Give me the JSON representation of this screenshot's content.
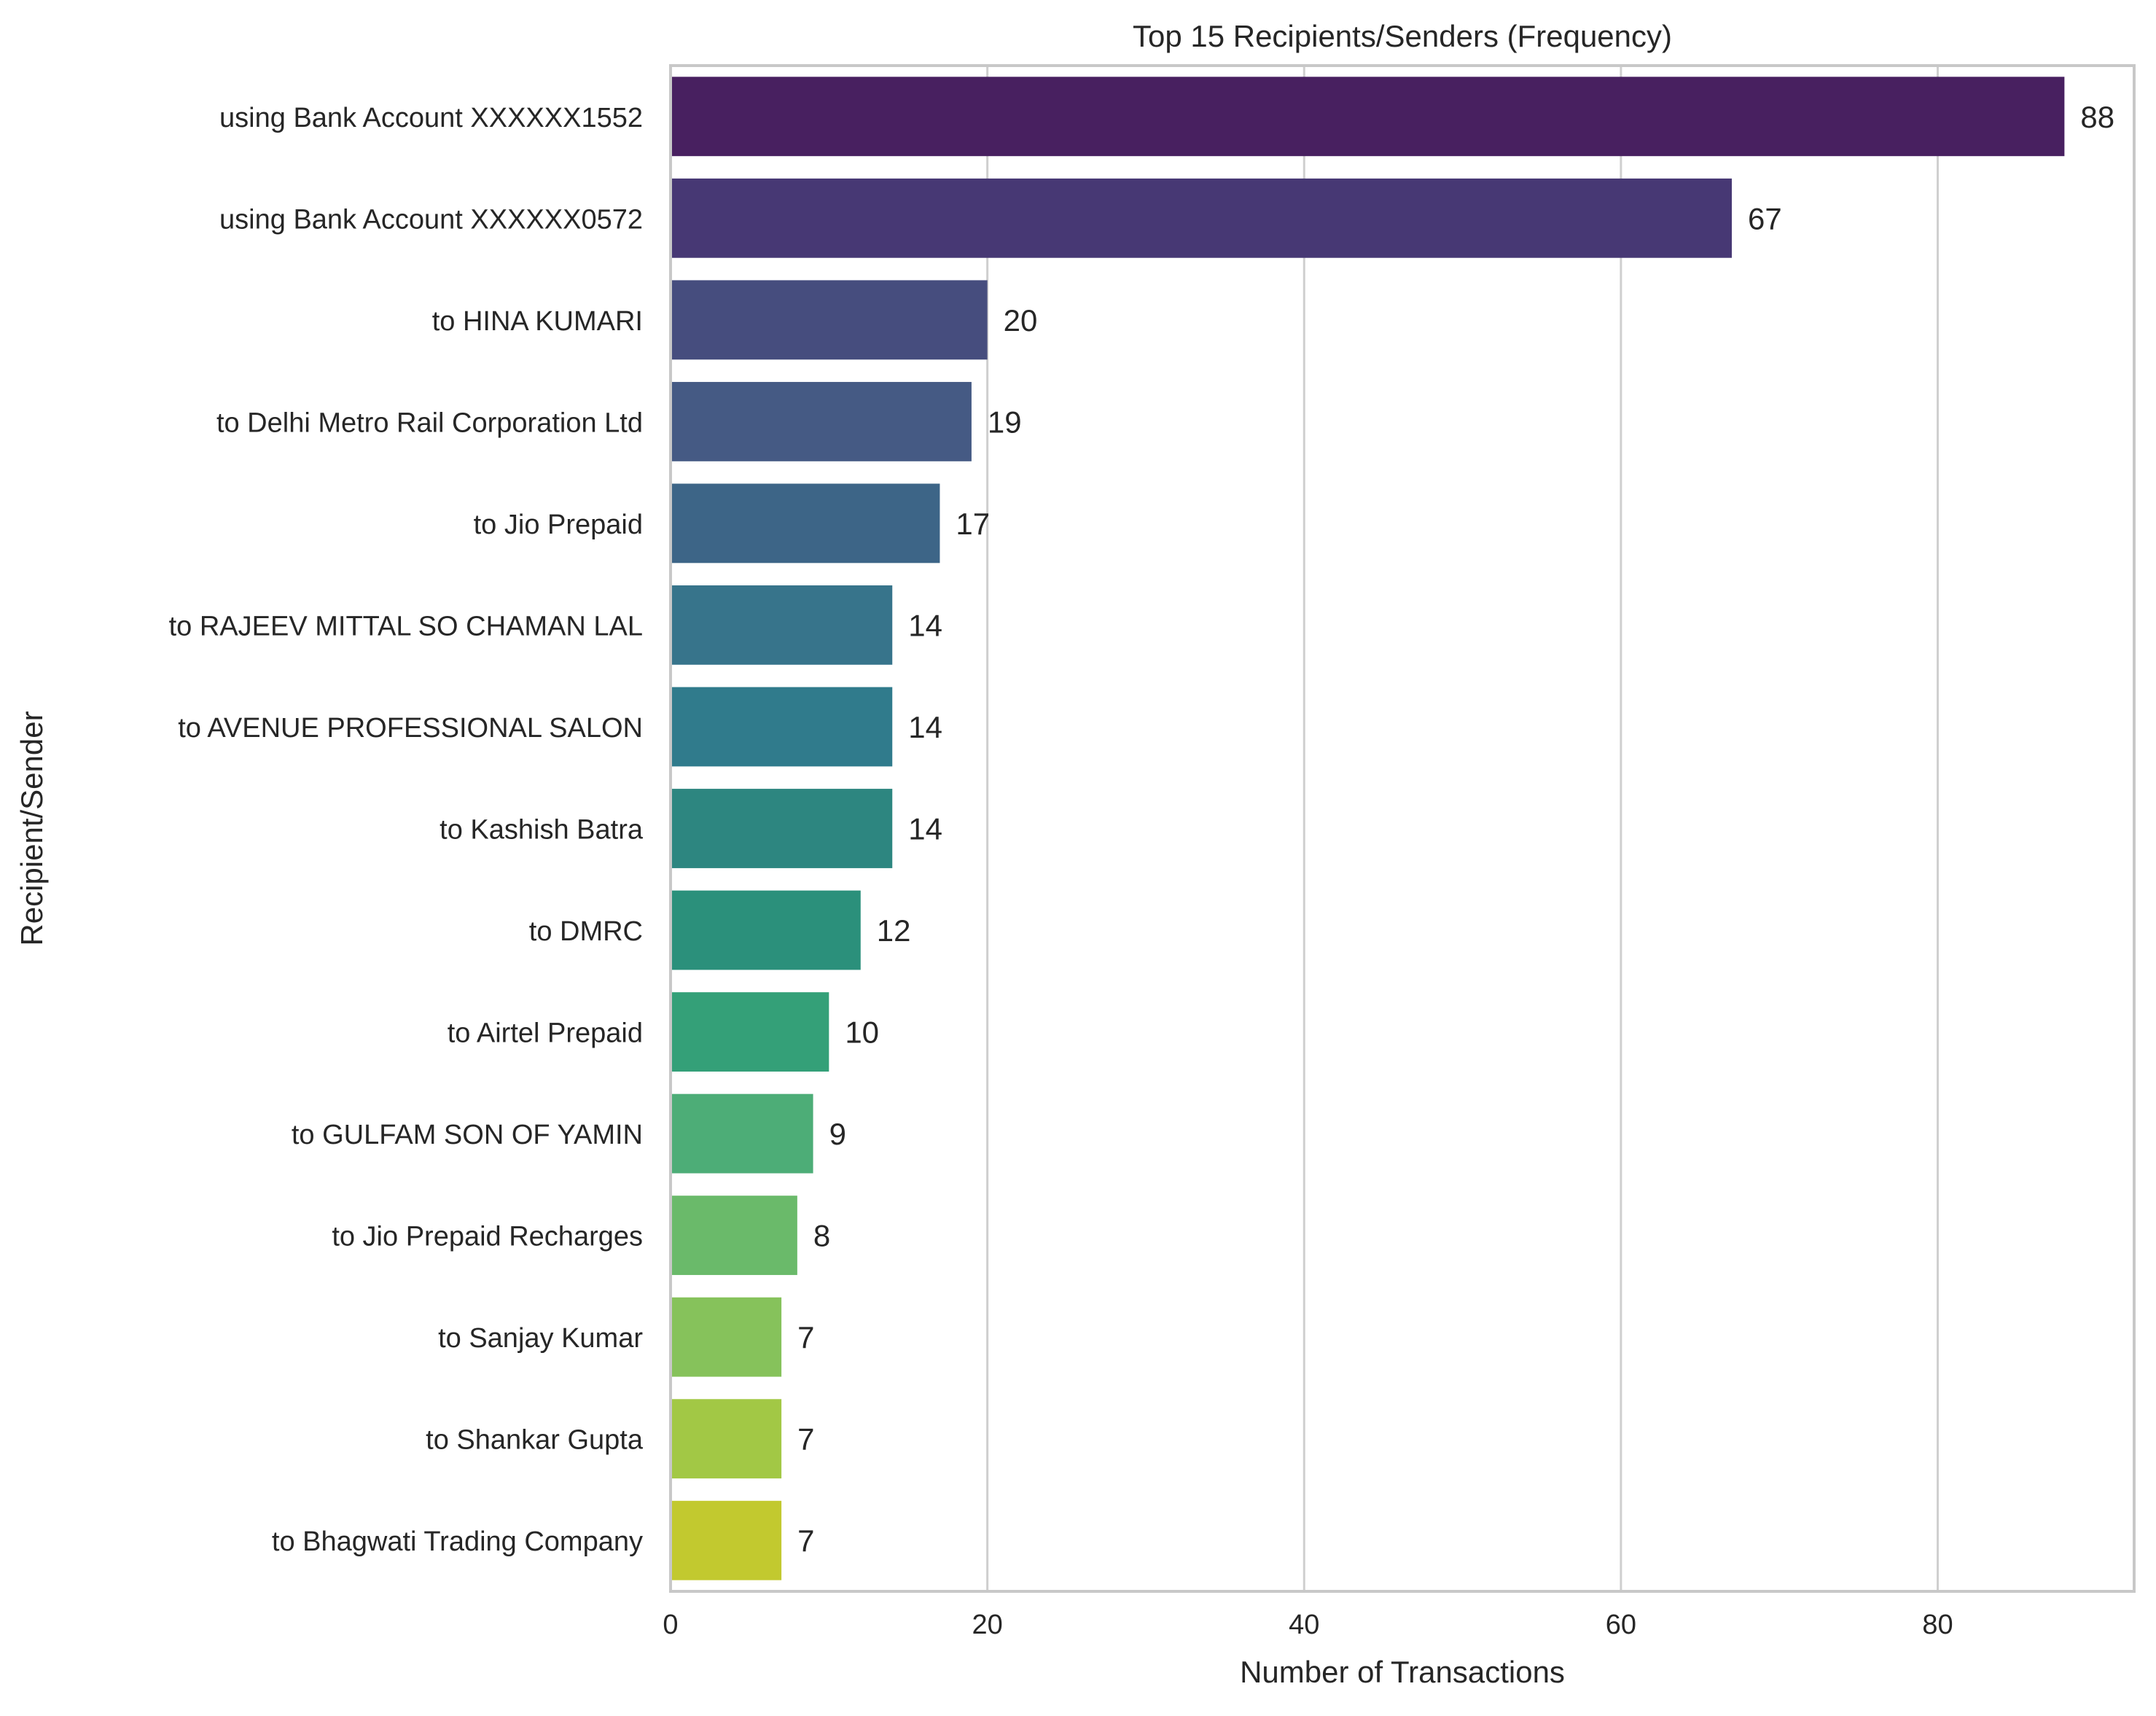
{
  "chart_data": {
    "type": "bar",
    "orientation": "horizontal",
    "title": "Top 15 Recipients/Senders (Frequency)",
    "xlabel": "Number of Transactions",
    "ylabel": "Recipient/Sender",
    "xlim": [
      0,
      92.4
    ],
    "xticks": [
      0,
      20,
      40,
      60,
      80
    ],
    "grid": "vertical",
    "categories": [
      "using Bank Account XXXXXX1552",
      "using Bank Account XXXXXX0572",
      "to HINA KUMARI",
      "to Delhi Metro Rail Corporation Ltd",
      "to Jio Prepaid",
      "to RAJEEV MITTAL SO CHAMAN LAL",
      "to AVENUE PROFESSIONAL SALON",
      "to Kashish Batra",
      "to DMRC",
      "to Airtel Prepaid",
      "to GULFAM SON OF YAMIN",
      "to Jio Prepaid Recharges",
      "to Sanjay Kumar",
      "to Shankar Gupta",
      "to Bhagwati Trading Company"
    ],
    "values": [
      88,
      67,
      20,
      19,
      17,
      14,
      14,
      14,
      12,
      10,
      9,
      8,
      7,
      7,
      7
    ],
    "colors": [
      "#482060",
      "#473874",
      "#464d7e",
      "#455a84",
      "#3d6587",
      "#37748b",
      "#307b8c",
      "#2d8680",
      "#2b907b",
      "#34a078",
      "#4dad77",
      "#6aba6a",
      "#86c25b",
      "#a2c845",
      "#c2c92f"
    ]
  }
}
